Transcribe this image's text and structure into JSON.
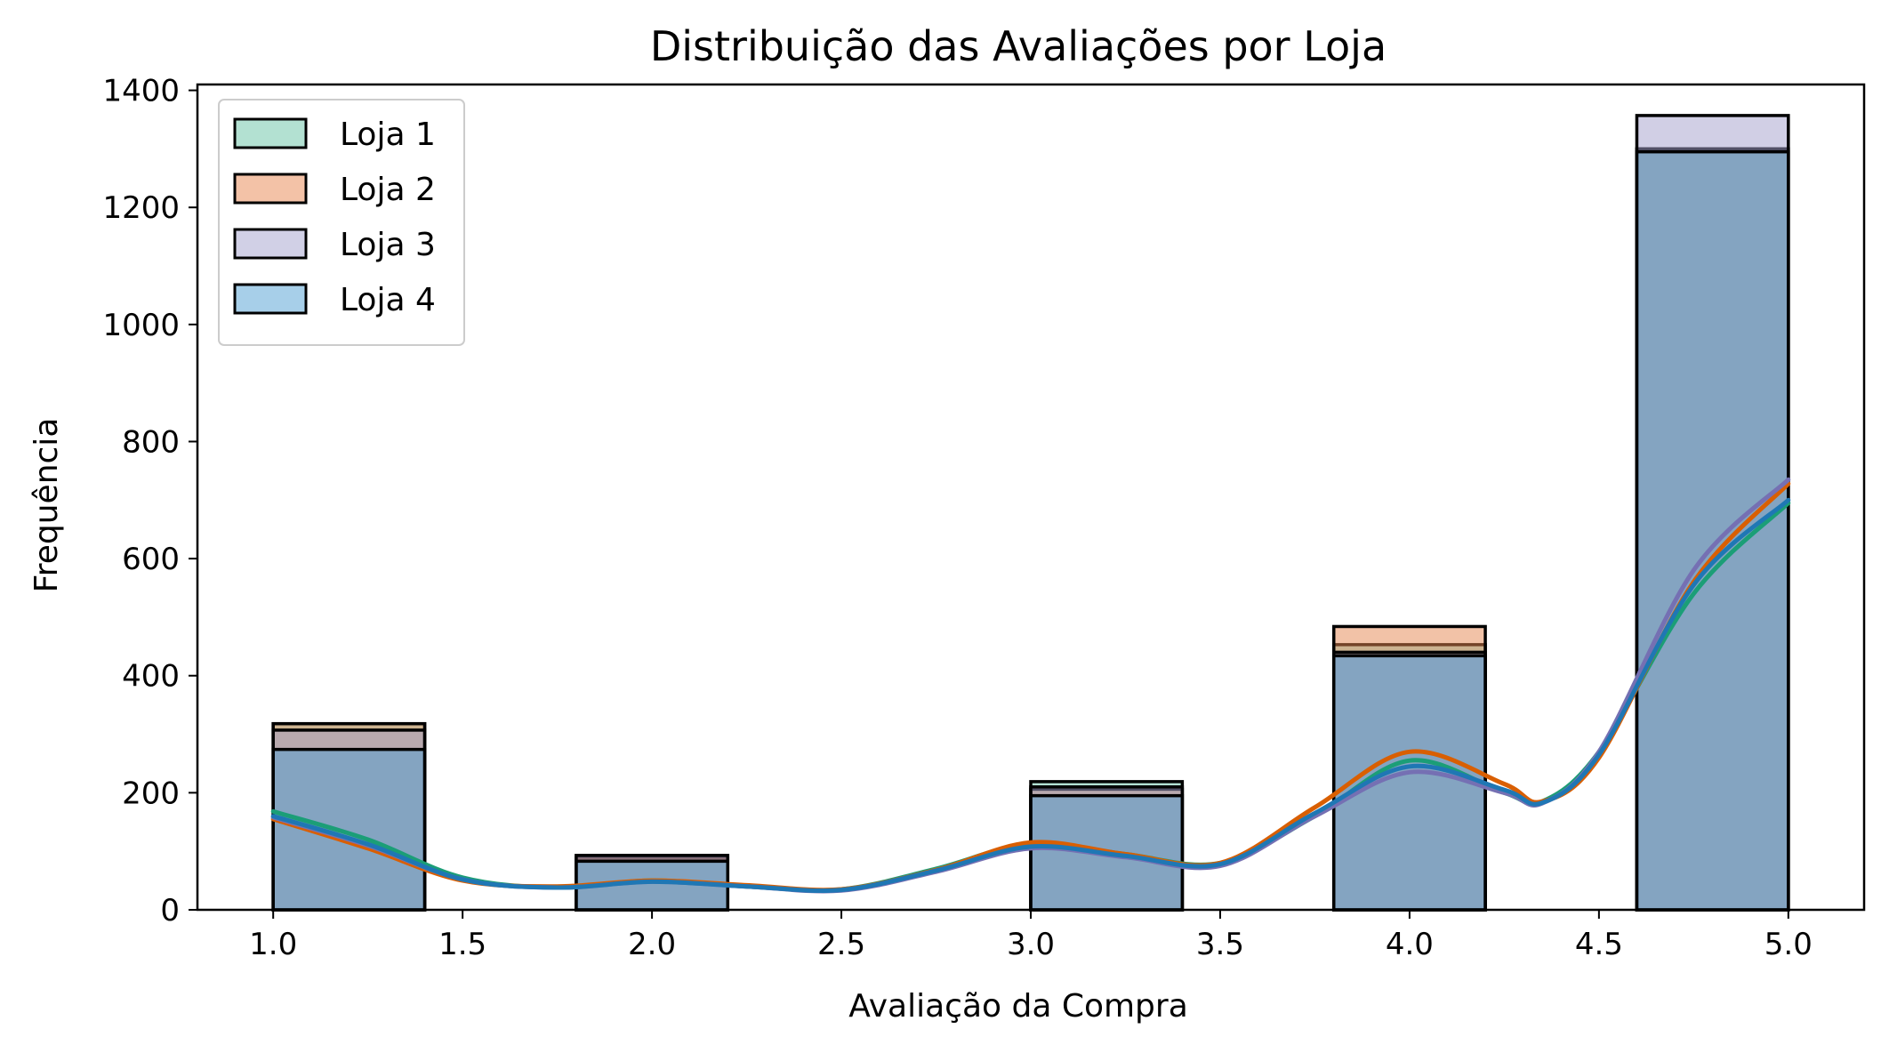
{
  "chart_data": {
    "type": "bar",
    "subtype": "histogram-with-kde",
    "title": "Distribuição das Avaliações por Loja",
    "xlabel": "Avaliação da Compra",
    "ylabel": "Frequência",
    "xlim": [
      0.8,
      5.2
    ],
    "ylim": [
      0,
      1410
    ],
    "xticks": [
      "1.0",
      "1.5",
      "2.0",
      "2.5",
      "3.0",
      "3.5",
      "4.0",
      "4.5",
      "5.0"
    ],
    "yticks": [
      "0",
      "200",
      "400",
      "600",
      "800",
      "1000",
      "1200",
      "1400"
    ],
    "bin_width": 0.4,
    "bins": [
      {
        "left": 1.0,
        "right": 1.4
      },
      {
        "left": 1.8,
        "right": 2.2
      },
      {
        "left": 3.0,
        "right": 3.4
      },
      {
        "left": 3.8,
        "right": 4.2
      },
      {
        "left": 4.6,
        "right": 5.0
      }
    ],
    "legend_position": "top-left",
    "grid": false,
    "series": [
      {
        "name": "Loja 1",
        "color": "#66c2a5",
        "kde_color": "#1b9e77",
        "values": [
          318,
          88,
          219,
          453,
          1300
        ],
        "kde": {
          "x": [
            1.0,
            1.25,
            1.5,
            1.75,
            2.0,
            2.25,
            2.5,
            2.75,
            3.0,
            3.25,
            3.5,
            3.75,
            4.0,
            4.25,
            4.35,
            4.5,
            4.75,
            5.0
          ],
          "y": [
            168,
            120,
            55,
            38,
            50,
            40,
            35,
            70,
            113,
            95,
            80,
            160,
            255,
            200,
            185,
            270,
            540,
            695
          ]
        }
      },
      {
        "name": "Loja 2",
        "color": "#e6854f",
        "kde_color": "#d95f02",
        "values": [
          318,
          92,
          206,
          484,
          1300
        ],
        "kde": {
          "x": [
            1.0,
            1.25,
            1.5,
            1.75,
            2.0,
            2.25,
            2.5,
            2.75,
            3.0,
            3.25,
            3.5,
            3.75,
            4.0,
            4.25,
            4.35,
            4.5,
            4.75,
            5.0
          ],
          "y": [
            155,
            105,
            50,
            40,
            50,
            42,
            35,
            68,
            115,
            95,
            80,
            175,
            270,
            215,
            185,
            260,
            560,
            728
          ]
        }
      },
      {
        "name": "Loja 3",
        "color": "#a3a0cc",
        "kde_color": "#7570b3",
        "values": [
          307,
          93,
          210,
          440,
          1357
        ],
        "kde": {
          "x": [
            1.0,
            1.25,
            1.5,
            1.75,
            2.0,
            2.25,
            2.5,
            2.75,
            3.0,
            3.25,
            3.5,
            3.75,
            4.0,
            4.25,
            4.35,
            4.5,
            4.75,
            5.0
          ],
          "y": [
            158,
            110,
            52,
            38,
            48,
            40,
            33,
            65,
            105,
            90,
            75,
            160,
            235,
            200,
            182,
            270,
            580,
            735
          ]
        }
      },
      {
        "name": "Loja 4",
        "color": "#4f9fd3",
        "kde_color": "#1f77b4",
        "values": [
          274,
          83,
          195,
          434,
          1295
        ],
        "kde": {
          "x": [
            1.0,
            1.25,
            1.5,
            1.75,
            2.0,
            2.25,
            2.5,
            2.75,
            3.0,
            3.25,
            3.5,
            3.75,
            4.0,
            4.25,
            4.35,
            4.5,
            4.75,
            5.0
          ],
          "y": [
            160,
            112,
            52,
            38,
            48,
            40,
            34,
            67,
            108,
            92,
            78,
            165,
            245,
            205,
            183,
            265,
            555,
            700
          ]
        }
      }
    ]
  }
}
